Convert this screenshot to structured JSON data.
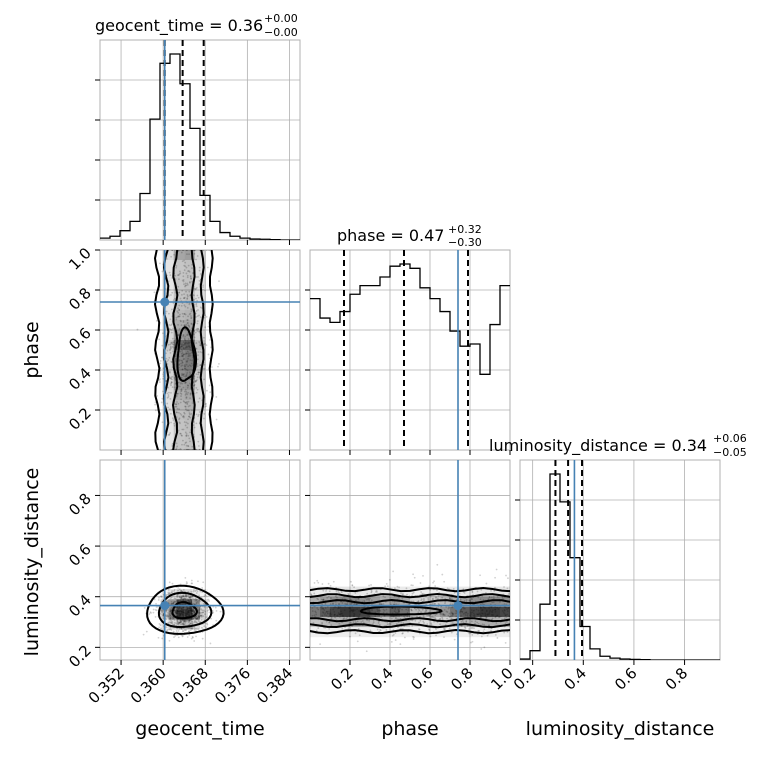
{
  "chart_data": {
    "type": "corner",
    "parameters": [
      {
        "name": "geocent_time",
        "label": "geocent_time",
        "title_prefix": "geocent_time = 0.36",
        "title_plus": "+0.00",
        "title_minus": "−0.00",
        "range": [
          0.348,
          0.386
        ],
        "ticks": [
          0.352,
          0.36,
          0.368,
          0.376,
          0.384
        ],
        "tick_labels": [
          "0.352",
          "0.360",
          "0.368",
          "0.376",
          "0.384"
        ],
        "truth": 0.3603,
        "quantiles": [
          0.3603,
          0.3637,
          0.3677
        ],
        "hist": [
          1,
          2,
          5,
          10,
          25,
          65,
          95,
          100,
          84,
          60,
          24,
          10,
          4,
          2,
          1,
          0.5,
          0.4,
          0.2,
          0,
          0
        ]
      },
      {
        "name": "phase",
        "label": "phase",
        "title_prefix": "phase = 0.47",
        "title_plus": "+0.32",
        "title_minus": "−0.30",
        "range": [
          0.0,
          1.0
        ],
        "ticks": [
          0.2,
          0.4,
          0.6,
          0.8,
          1.0
        ],
        "tick_labels": [
          "0.2",
          "0.4",
          "0.6",
          "0.8",
          "1.0"
        ],
        "truth": 0.74,
        "quantiles": [
          0.17,
          0.47,
          0.79
        ],
        "hist": [
          70,
          61,
          59,
          64,
          72,
          76,
          76,
          80,
          85,
          86,
          84,
          75,
          70,
          64,
          55,
          48,
          49,
          35,
          58,
          76
        ]
      },
      {
        "name": "luminosity_distance",
        "label": "luminosity_distance",
        "title_prefix": "luminosity_distance = 0.34",
        "title_plus": "+0.06",
        "title_minus": "−0.05",
        "range": [
          0.15,
          0.94
        ],
        "ticks": [
          0.2,
          0.4,
          0.6,
          0.8
        ],
        "tick_labels": [
          "0.2",
          "0.4",
          "0.6",
          "0.8"
        ],
        "truth": 0.365,
        "quantiles": [
          0.29,
          0.34,
          0.395
        ],
        "hist": [
          0.5,
          5,
          30,
          100,
          85,
          55,
          18,
          6,
          2,
          1,
          0.5,
          0.3,
          0.2,
          0,
          0,
          0,
          0,
          0,
          0,
          0
        ]
      }
    ],
    "axis_ticks_2d": {
      "phase": [
        "0.2",
        "0.4",
        "0.6",
        "0.8",
        "1.0"
      ],
      "luminosity_distance": [
        "0.2",
        "0.4",
        "0.6",
        "0.8"
      ]
    },
    "colors": {
      "truth": "#4682b4",
      "contour": "#000000",
      "grid": "#b0b0b0"
    },
    "grid": true
  }
}
